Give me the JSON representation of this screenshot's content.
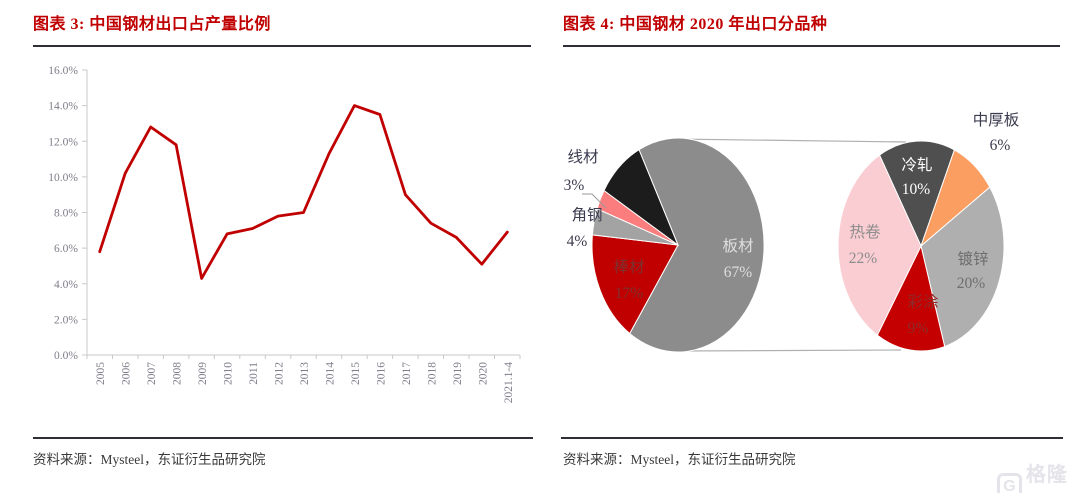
{
  "figures": {
    "left": {
      "title": "图表 3: 中国钢材出口占产量比例",
      "source": "资料来源：Mysteel，东证衍生品研究院"
    },
    "right": {
      "title": "图表 4: 中国钢材 2020 年出口分品种",
      "source": "资料来源：Mysteel，东证衍生品研究院"
    }
  },
  "watermark": {
    "logo_letter": "G",
    "text": "格隆汇"
  },
  "colors": {
    "accent_red": "#C00000",
    "rule_dark": "#2E2E38",
    "axis_gray": "#C9C9C9",
    "tick_label_gray": "#7E7E8A",
    "connector_gray": "#B0B0B0"
  },
  "chart_data": [
    {
      "type": "line",
      "title": "中国钢材出口占产量比例",
      "categories": [
        "2005",
        "2006",
        "2007",
        "2008",
        "2009",
        "2010",
        "2011",
        "2012",
        "2013",
        "2014",
        "2015",
        "2016",
        "2017",
        "2018",
        "2019",
        "2020",
        "2021.1-4"
      ],
      "values": [
        5.8,
        10.2,
        12.8,
        11.8,
        4.3,
        6.8,
        7.1,
        7.8,
        8.0,
        11.3,
        14.0,
        13.5,
        9.0,
        7.4,
        6.6,
        5.1,
        6.9
      ],
      "unit": "%",
      "ylim": [
        0,
        16
      ],
      "ytick_step": 2,
      "ytick_format": "x.x%",
      "line_color": "#C00000",
      "grid": false,
      "legend": "none"
    },
    {
      "type": "pie",
      "subtype": "pie-of-pie",
      "title": "中国钢材 2020 年出口分品种",
      "main_pie": {
        "start_angle_deg": -27,
        "total": 100,
        "slices": [
          {
            "label": "板材",
            "value": 67,
            "pct_label": "67%",
            "color": "#8C8C8C",
            "label_color": "#DEDEDE",
            "label_placement": "inside"
          },
          {
            "label": "棒材",
            "value": 17,
            "pct_label": "17%",
            "color": "#C00000",
            "label_color": "#7E3030",
            "label_placement": "inside"
          },
          {
            "label": "角钢",
            "value": 4,
            "pct_label": "4%",
            "color": "#A3A3A3",
            "label_color": "#3C3C50",
            "label_placement": "outside"
          },
          {
            "label": "线材",
            "value": 3,
            "pct_label": "3%",
            "color": "#FC7D7D",
            "label_color": "#3C3C50",
            "label_placement": "outside"
          },
          {
            "label": "",
            "value": 9,
            "pct_label": "",
            "color": "#1C1C1C",
            "label_color": "",
            "label_placement": "none"
          }
        ]
      },
      "secondary_pie": {
        "represents": "板材",
        "start_angle_deg": -30,
        "total": 67,
        "slices": [
          {
            "label": "冷轧",
            "value": 10,
            "pct_label": "10%",
            "color": "#4F4F4F",
            "label_color": "#FFFFFF",
            "label_placement": "inside"
          },
          {
            "label": "中厚板",
            "value": 6,
            "pct_label": "6%",
            "color": "#FA9E62",
            "label_color": "#3C3C50",
            "label_placement": "outside"
          },
          {
            "label": "镀锌",
            "value": 20,
            "pct_label": "20%",
            "color": "#AFAFAF",
            "label_color": "#6E6E6E",
            "label_placement": "inside"
          },
          {
            "label": "彩涂",
            "value": 9,
            "pct_label": "9%",
            "color": "#C40000",
            "label_color": "#8F2B2B",
            "label_placement": "inside"
          },
          {
            "label": "热卷",
            "value": 22,
            "pct_label": "22%",
            "color": "#F9CDD2",
            "label_color": "#8C8C8C",
            "label_placement": "inside"
          }
        ]
      }
    }
  ]
}
